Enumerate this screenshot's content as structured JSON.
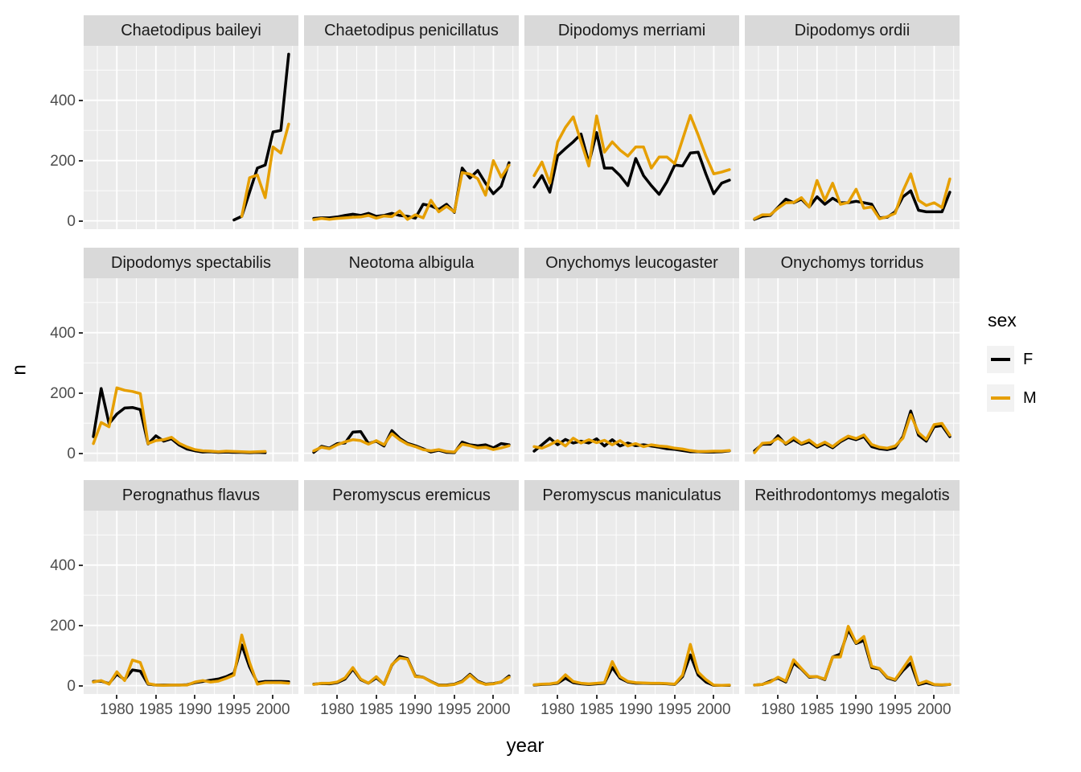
{
  "figure": {
    "y_axis_title": "n",
    "x_axis_title": "year",
    "x_ticks": [
      1980,
      1985,
      1990,
      1995,
      2000
    ],
    "y_ticks": [
      0,
      200,
      400
    ],
    "panel_bg": "#EBEBEB",
    "strip_bg": "#D9D9D9",
    "grid_color": "#FFFFFF"
  },
  "legend": {
    "title": "sex",
    "entries": [
      {
        "label": "F",
        "color": "#000000"
      },
      {
        "label": "M",
        "color": "#E69F00"
      }
    ]
  },
  "chart_data": {
    "type": "line",
    "title": "",
    "xlabel": "year",
    "ylabel": "n",
    "legend_title": "sex",
    "x_range": [
      1977,
      2002
    ],
    "ylim": [
      0,
      560
    ],
    "y_gridlines_major": [
      0,
      200,
      400
    ],
    "y_gridlines_minor": [
      100,
      300,
      500
    ],
    "x_gridlines_major": [
      1980,
      1985,
      1990,
      1995,
      2000
    ],
    "x_gridlines_minor": [
      1977.5,
      1982.5,
      1987.5,
      1992.5,
      1997.5,
      2002.5
    ],
    "legend_position": "right",
    "facets": [
      {
        "species": "Chaetodipus baileyi",
        "series": [
          {
            "name": "F",
            "year_start": 1995,
            "values": [
              3,
              15,
              95,
              175,
              185,
              295,
              300,
              553
            ]
          },
          {
            "name": "M",
            "year_start": 1996,
            "values": [
              15,
              143,
              152,
              77,
              245,
              225,
              321
            ]
          }
        ]
      },
      {
        "species": "Chaetodipus penicillatus",
        "series": [
          {
            "name": "F",
            "year_start": 1977,
            "values": [
              8,
              10,
              10,
              13,
              18,
              22,
              18,
              25,
              15,
              18,
              25,
              18,
              15,
              9,
              55,
              50,
              38,
              55,
              28,
              175,
              142,
              167,
              125,
              90,
              115,
              193
            ]
          },
          {
            "name": "M",
            "year_start": 1977,
            "values": [
              4,
              8,
              5,
              8,
              10,
              12,
              13,
              18,
              9,
              16,
              14,
              33,
              5,
              20,
              10,
              68,
              30,
              48,
              30,
              160,
              155,
              140,
              85,
              200,
              145,
              185
            ]
          }
        ]
      },
      {
        "species": "Dipodomys merriami",
        "series": [
          {
            "name": "F",
            "year_start": 1977,
            "values": [
              112,
              150,
              95,
              216,
              240,
              262,
              288,
              192,
              293,
              175,
              175,
              150,
              117,
              207,
              150,
              117,
              88,
              130,
              185,
              182,
              225,
              228,
              155,
              90,
              125,
              135
            ]
          },
          {
            "name": "M",
            "year_start": 1977,
            "values": [
              150,
              195,
              125,
              262,
              310,
              345,
              262,
              182,
              348,
              228,
              262,
              235,
              215,
              245,
              245,
              175,
              212,
              212,
              190,
              270,
              350,
              285,
              215,
              156,
              162,
              170
            ]
          }
        ]
      },
      {
        "species": "Dipodomys ordii",
        "series": [
          {
            "name": "F",
            "year_start": 1977,
            "values": [
              5,
              15,
              18,
              45,
              72,
              60,
              72,
              46,
              80,
              55,
              75,
              60,
              60,
              65,
              60,
              55,
              10,
              12,
              30,
              80,
              100,
              35,
              30,
              30,
              30,
              95
            ]
          },
          {
            "name": "M",
            "year_start": 1977,
            "values": [
              7,
              20,
              20,
              42,
              60,
              61,
              77,
              46,
              134,
              68,
              125,
              55,
              61,
              105,
              42,
              46,
              7,
              14,
              25,
              99,
              156,
              68,
              51,
              60,
              44,
              139
            ]
          }
        ]
      },
      {
        "species": "Dipodomys spectabilis",
        "series": [
          {
            "name": "F",
            "year_start": 1977,
            "values": [
              55,
              215,
              98,
              130,
              150,
              152,
              145,
              31,
              58,
              40,
              48,
              27,
              14,
              8,
              4,
              5,
              3,
              4,
              3,
              3,
              2,
              3,
              2
            ]
          },
          {
            "name": "M",
            "year_start": 1977,
            "values": [
              32,
              102,
              88,
              217,
              209,
              205,
              198,
              32,
              42,
              45,
              53,
              33,
              21,
              12,
              8,
              7,
              5,
              7,
              6,
              5,
              4,
              5,
              6
            ]
          }
        ]
      },
      {
        "species": "Neotoma albigula",
        "series": [
          {
            "name": "F",
            "year_start": 1977,
            "values": [
              3,
              23,
              17,
              32,
              34,
              70,
              72,
              32,
              40,
              24,
              75,
              50,
              33,
              25,
              15,
              4,
              10,
              3,
              2,
              37,
              28,
              25,
              28,
              18,
              32,
              28
            ]
          },
          {
            "name": "M",
            "year_start": 1977,
            "values": [
              8,
              20,
              15,
              28,
              38,
              45,
              42,
              30,
              42,
              28,
              65,
              45,
              30,
              22,
              12,
              8,
              12,
              6,
              4,
              30,
              25,
              18,
              20,
              12,
              18,
              25
            ]
          }
        ]
      },
      {
        "species": "Onychomys leucogaster",
        "series": [
          {
            "name": "F",
            "year_start": 1977,
            "values": [
              7,
              28,
              50,
              28,
              46,
              34,
              40,
              34,
              48,
              24,
              45,
              24,
              34,
              25,
              28,
              24,
              20,
              15,
              13,
              9,
              5,
              5,
              4,
              4,
              5,
              8
            ]
          },
          {
            "name": "M",
            "year_start": 1977,
            "values": [
              22,
              17,
              28,
              42,
              24,
              50,
              34,
              45,
              35,
              43,
              28,
              42,
              24,
              32,
              22,
              28,
              24,
              22,
              17,
              14,
              9,
              6,
              6,
              7,
              7,
              9
            ]
          }
        ]
      },
      {
        "species": "Onychomys torridus",
        "series": [
          {
            "name": "F",
            "year_start": 1977,
            "values": [
              8,
              30,
              30,
              58,
              30,
              45,
              30,
              38,
              20,
              32,
              18,
              38,
              52,
              45,
              55,
              22,
              15,
              12,
              18,
              55,
              140,
              60,
              40,
              88,
              92,
              55
            ]
          },
          {
            "name": "M",
            "year_start": 1977,
            "values": [
              2,
              33,
              35,
              50,
              33,
              52,
              33,
              44,
              24,
              37,
              22,
              42,
              57,
              49,
              61,
              29,
              20,
              17,
              24,
              50,
              128,
              68,
              46,
              95,
              99,
              60
            ]
          }
        ]
      },
      {
        "species": "Perognathus flavus",
        "series": [
          {
            "name": "F",
            "year_start": 1977,
            "values": [
              14,
              15,
              7,
              38,
              20,
              52,
              48,
              5,
              2,
              2,
              2,
              2,
              3,
              10,
              14,
              18,
              22,
              30,
              42,
              135,
              62,
              10,
              14,
              14,
              14,
              13
            ]
          },
          {
            "name": "M",
            "year_start": 1977,
            "values": [
              12,
              17,
              5,
              46,
              17,
              85,
              77,
              7,
              2,
              1,
              2,
              2,
              2,
              12,
              17,
              12,
              15,
              24,
              35,
              168,
              77,
              5,
              10,
              10,
              10,
              8
            ]
          }
        ]
      },
      {
        "species": "Peromyscus eremicus",
        "series": [
          {
            "name": "F",
            "year_start": 1977,
            "values": [
              5,
              7,
              6,
              10,
              22,
              55,
              20,
              8,
              26,
              5,
              68,
              97,
              90,
              32,
              28,
              14,
              2,
              2,
              5,
              15,
              38,
              15,
              5,
              7,
              12,
              32
            ]
          },
          {
            "name": "M",
            "year_start": 1977,
            "values": [
              4,
              8,
              8,
              12,
              26,
              60,
              22,
              8,
              30,
              4,
              70,
              92,
              88,
              30,
              28,
              13,
              1,
              1,
              4,
              13,
              35,
              13,
              4,
              6,
              13,
              28
            ]
          }
        ]
      },
      {
        "species": "Peromyscus maniculatus",
        "series": [
          {
            "name": "F",
            "year_start": 1977,
            "values": [
              2,
              4,
              5,
              8,
              25,
              10,
              6,
              4,
              6,
              8,
              60,
              25,
              12,
              8,
              8,
              7,
              7,
              6,
              4,
              30,
              102,
              35,
              12,
              1,
              1,
              1
            ]
          },
          {
            "name": "M",
            "year_start": 1977,
            "values": [
              3,
              5,
              6,
              10,
              36,
              14,
              8,
              6,
              8,
              10,
              80,
              30,
              14,
              10,
              9,
              8,
              8,
              7,
              5,
              35,
              137,
              45,
              20,
              2,
              1,
              2
            ]
          }
        ]
      },
      {
        "species": "Reithrodontomys megalotis",
        "series": [
          {
            "name": "F",
            "year_start": 1977,
            "values": [
              2,
              4,
              15,
              25,
              12,
              75,
              55,
              28,
              30,
              20,
              95,
              105,
              185,
              140,
              150,
              60,
              55,
              26,
              18,
              50,
              75,
              3,
              10,
              3,
              2,
              4
            ]
          },
          {
            "name": "M",
            "year_start": 1977,
            "values": [
              2,
              4,
              12,
              28,
              15,
              86,
              57,
              30,
              30,
              22,
              95,
              95,
              197,
              142,
              163,
              64,
              57,
              28,
              20,
              57,
              95,
              6,
              15,
              4,
              3,
              4
            ]
          }
        ]
      }
    ]
  }
}
